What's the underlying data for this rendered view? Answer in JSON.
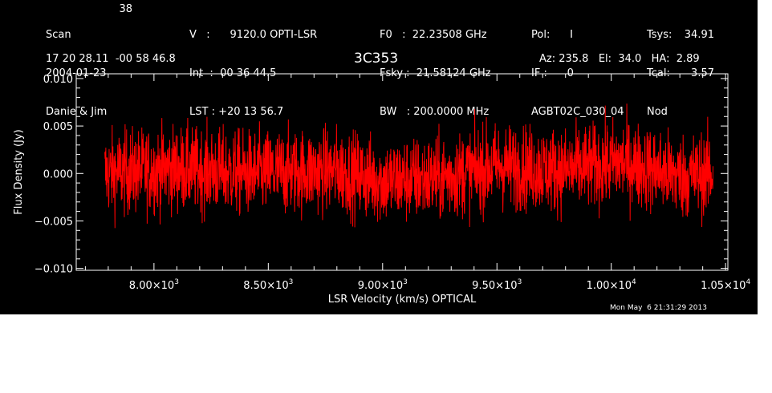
{
  "header": {
    "col1": [
      "Scan",
      "2004-01-23",
      "Danie & Jim"
    ],
    "scan_number": "38",
    "col2": [
      "V   :      9120.0 OPTI-LSR",
      "Int  :  00 36 44.5",
      "LST : +20 13 56.7"
    ],
    "col3": [
      "F0   :  22.23508 GHz",
      "Fsky :  21.58124 GHz",
      "BW   : 200.0000 MHz"
    ],
    "col4": [
      "Pol:      I",
      "IF :      0",
      "AGBT02C_030_04"
    ],
    "col5_labels": [
      "Tsys:",
      "Tcal:",
      "Nod"
    ],
    "col5_values": [
      "34.91",
      "3.57",
      ""
    ],
    "coords": "17 20 28.11  -00 58 46.8",
    "source": "3C353",
    "azelha": "Az: 235.8   El:  34.0   HA:  2.89",
    "timestamp": "Mon May  6 21:31:29 2013"
  },
  "chart_data": {
    "type": "line",
    "xlabel": "LSR Velocity (km/s) OPTICAL",
    "ylabel": "Flux Density (Jy)",
    "xlim": [
      7660,
      10510
    ],
    "ylim": [
      -0.0102,
      0.0105
    ],
    "x_ticks": [
      8000,
      8500,
      9000,
      9500,
      10000,
      10500
    ],
    "x_tick_labels": [
      {
        "mant": "8.00×10",
        "exp": "3"
      },
      {
        "mant": "8.50×10",
        "exp": "3"
      },
      {
        "mant": "9.00×10",
        "exp": "3"
      },
      {
        "mant": "9.50×10",
        "exp": "3"
      },
      {
        "mant": "1.00×10",
        "exp": "4"
      },
      {
        "mant": "1.05×10",
        "exp": "4"
      }
    ],
    "y_ticks": [
      -0.01,
      -0.005,
      0.0,
      0.005,
      0.01
    ],
    "y_tick_labels": [
      "−0.010",
      "−0.005",
      "0.000",
      "0.005",
      "0.010"
    ],
    "series": [
      {
        "color": "#ff0000",
        "x_start": 7785,
        "x_end": 10445,
        "n_points": 2400,
        "envelope": [
          [
            7785,
            0.0
          ],
          [
            8100,
            0.0005
          ],
          [
            8400,
            0.0
          ],
          [
            8800,
            0.0003
          ],
          [
            9000,
            -0.0008
          ],
          [
            9250,
            -0.0005
          ],
          [
            9500,
            0.0008
          ],
          [
            9800,
            0.0003
          ],
          [
            10050,
            0.0012
          ],
          [
            10300,
            -0.0003
          ],
          [
            10445,
            0.0
          ]
        ],
        "noise_sigma": 0.0022
      }
    ]
  }
}
